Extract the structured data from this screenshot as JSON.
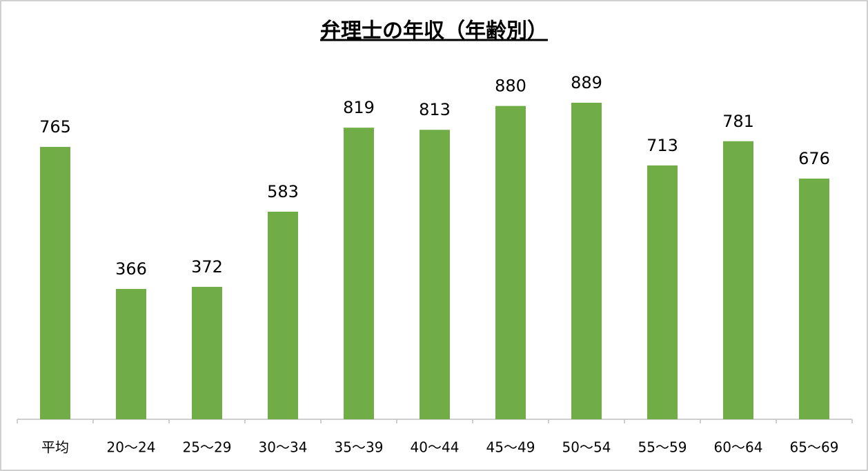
{
  "chart_data": {
    "type": "bar",
    "title": "弁理士の年収（年齢別）",
    "categories": [
      "平均",
      "20〜24",
      "25〜29",
      "30〜34",
      "35〜39",
      "40〜44",
      "45〜49",
      "50〜54",
      "55〜59",
      "60〜64",
      "65〜69"
    ],
    "values": [
      765,
      366,
      372,
      583,
      819,
      813,
      880,
      889,
      713,
      781,
      676
    ],
    "color": "#70ad47"
  }
}
